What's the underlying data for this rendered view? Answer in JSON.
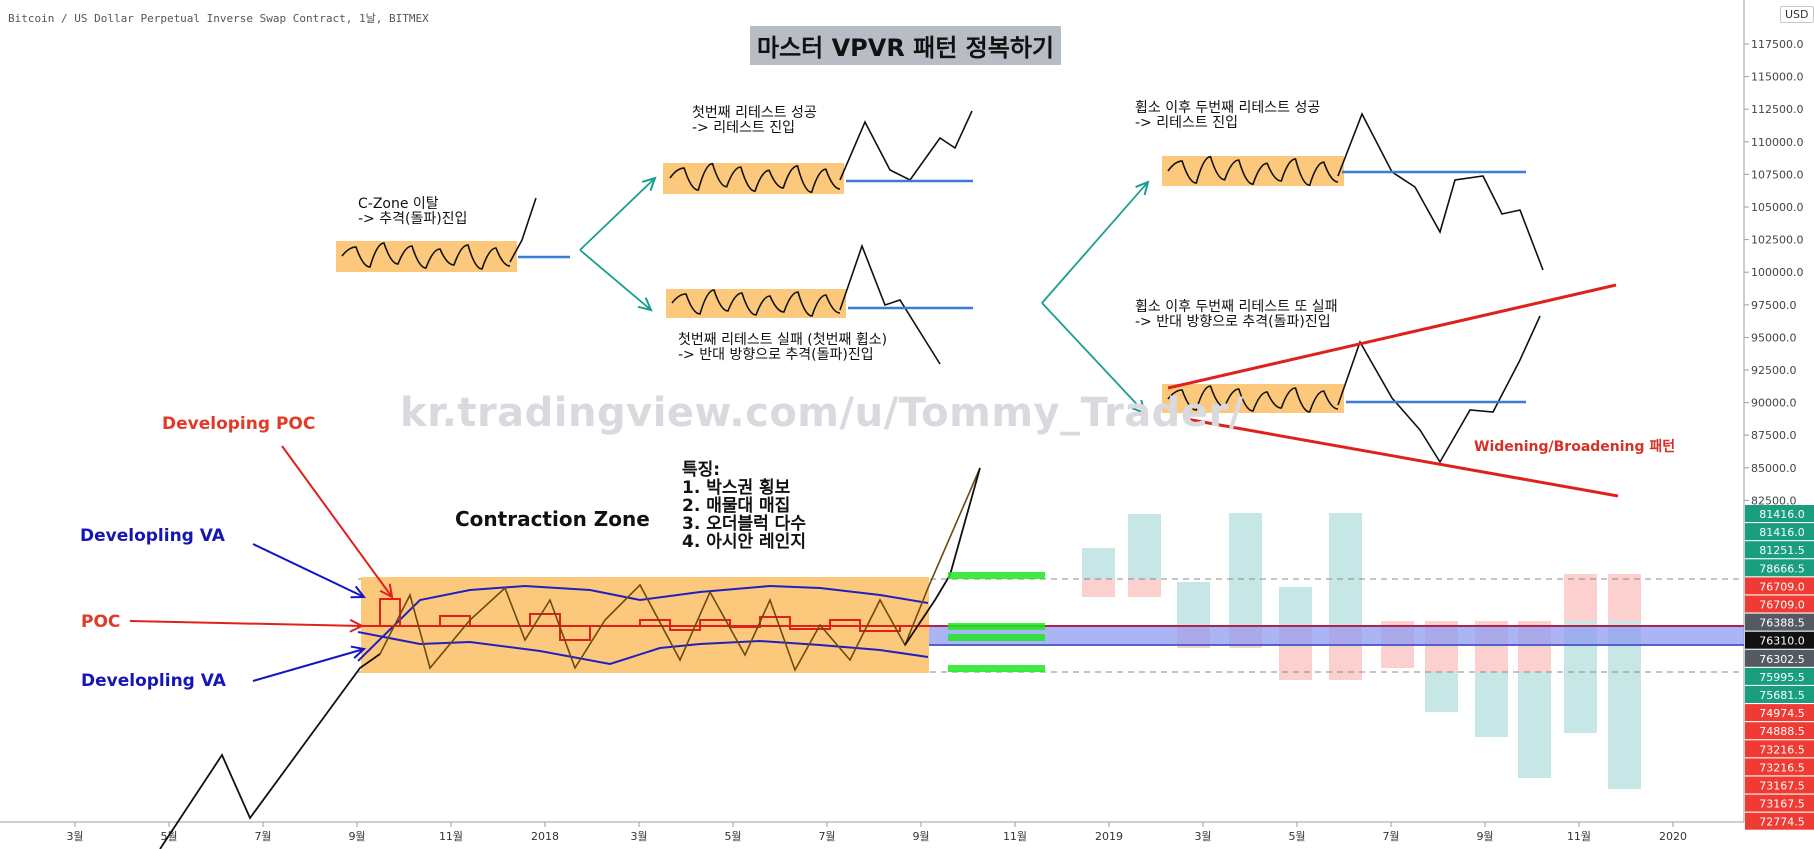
{
  "header": {
    "symbol_info": "Bitcoin / US Dollar Perpetual Inverse Swap Contract, 1날, BITMEX",
    "currency_button": "USD"
  },
  "overlay": {
    "title": "마스터 VPVR 패턴 정복하기",
    "watermark": "kr.tradingview.com/u/Tommy_Trader/"
  },
  "annotations": {
    "czone_break": "C-Zone 이탈\n-> 추격(돌파)진입",
    "first_retest_success": "첫번째 리테스트 성공\n-> 리테스트 진입",
    "first_retest_fail": "첫번째 리테스트 실패 (첫번째 휩소)\n-> 반대 방향으로 추격(돌파)진입",
    "second_retest_success": "휩소 이후 두번째 리테스트 성공\n-> 리테스트 진입",
    "second_retest_fail": "휩소 이후 두번째 리테스트 또 실패\n-> 반대 방향으로 추격(돌파)진입",
    "widening": "Widening/Broadening 패턴",
    "developing_poc": "Developing POC",
    "developing_va_top": "Developling VA",
    "poc": "POC",
    "developing_va_bottom": "Developling VA",
    "contraction_zone": "Contraction Zone",
    "features": "특징:\n1. 박스권 횡보\n2. 매물대 매집\n3. 오더블럭 다수\n4. 아시안 레인지"
  },
  "colors": {
    "zone": "#fcc97c",
    "blue_line": "#3a7bd5",
    "red": "#e0201a",
    "teal_arrow": "#1a9e8f",
    "navy_arrow": "#1414c8",
    "green_bar": "#1ee61e",
    "vol_up": "#c7e7e6",
    "vol_down": "#fbd0cf",
    "va_band": "#8f9cf3",
    "axis_green": "#1a9e80",
    "axis_red": "#ef3b33",
    "axis_dark": "#555a62"
  },
  "chart_data": {
    "type": "line",
    "x_axis": {
      "tick_labels": [
        "3월",
        "5월",
        "7월",
        "9월",
        "11월",
        "2018",
        "3월",
        "5월",
        "7월",
        "9월",
        "11월",
        "2019",
        "3월",
        "5월",
        "7월",
        "9월",
        "11월",
        "2020"
      ]
    },
    "y_axis": {
      "position": "right",
      "scale_ticks": [
        "117500.0",
        "115000.0",
        "112500.0",
        "110000.0",
        "107500.0",
        "105000.0",
        "102500.0",
        "100000.0",
        "97500.0",
        "95000.0",
        "92500.0",
        "90000.0",
        "87500.0",
        "85000.0",
        "82500.0"
      ],
      "price_labels": [
        {
          "text": "81416.0",
          "kind": "green"
        },
        {
          "text": "81416.0",
          "kind": "green"
        },
        {
          "text": "81251.5",
          "kind": "green"
        },
        {
          "text": "78666.5",
          "kind": "green"
        },
        {
          "text": "76709.0",
          "kind": "red"
        },
        {
          "text": "76709.0",
          "kind": "red"
        },
        {
          "text": "76388.5",
          "kind": "dark"
        },
        {
          "text": "76310.0",
          "kind": "black"
        },
        {
          "text": "76302.5",
          "kind": "dark"
        },
        {
          "text": "75995.5",
          "kind": "green"
        },
        {
          "text": "75681.5",
          "kind": "green"
        },
        {
          "text": "74974.5",
          "kind": "red"
        },
        {
          "text": "74888.5",
          "kind": "red"
        },
        {
          "text": "73216.5",
          "kind": "red"
        },
        {
          "text": "73216.5",
          "kind": "red"
        },
        {
          "text": "73167.5",
          "kind": "red"
        },
        {
          "text": "73167.5",
          "kind": "red"
        },
        {
          "text": "72774.5",
          "kind": "red"
        }
      ]
    },
    "levels": {
      "va_high": 78666.5,
      "poc": 76388.5,
      "last_price": 76310.0,
      "va_low": 75995.5
    }
  }
}
